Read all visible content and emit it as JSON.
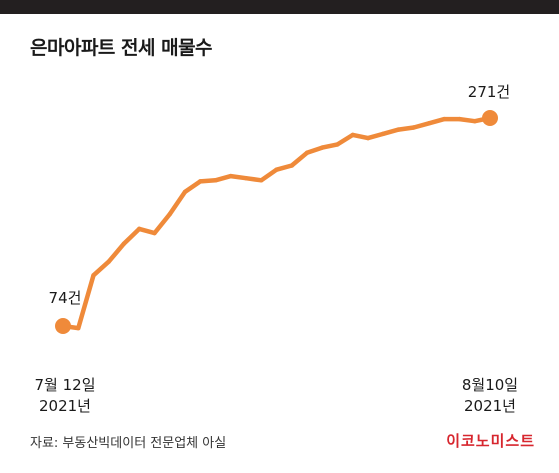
{
  "title": "은마아파트 전세 매물수",
  "source": "자료: 부동산빅데이터 전문업체 아실",
  "brand": "이코노미스트",
  "colors": {
    "line": "#ef8a3a",
    "topbar": "#231f20",
    "brand": "#d7262e"
  },
  "chart_data": {
    "type": "line",
    "title": "은마아파트 전세 매물수",
    "series": [
      {
        "values": [
          74,
          72,
          122,
          135,
          152,
          166,
          162,
          180,
          201,
          211,
          212,
          216,
          214,
          212,
          222,
          226,
          238,
          243,
          246,
          255,
          252,
          256,
          260,
          262,
          266,
          270,
          270,
          268,
          271
        ]
      }
    ],
    "start": {
      "date": "7월 12일",
      "year": "2021년",
      "value_label": "74건"
    },
    "end": {
      "date": "8월10일",
      "year": "2021년",
      "value_label": "271건"
    },
    "ylim": [
      74,
      271
    ],
    "grid": false
  }
}
